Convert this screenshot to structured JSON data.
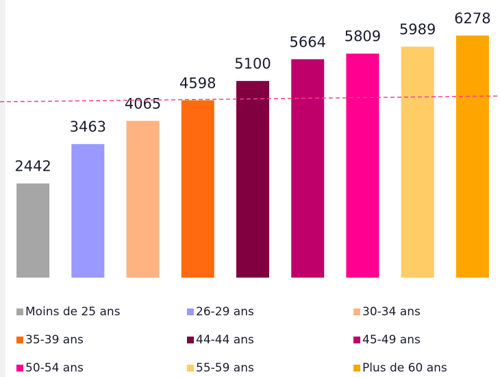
{
  "chart_data": {
    "type": "bar",
    "categories": [
      "Moins de 25 ans",
      "26-29 ans",
      "30-34 ans",
      "35-39 ans",
      "44-44 ans",
      "45-49 ans",
      "50-54 ans",
      "55-59 ans",
      "Plus de 60 ans"
    ],
    "values": [
      2442,
      3463,
      4065,
      4598,
      5100,
      5664,
      5809,
      5989,
      6278
    ],
    "colors": [
      "#a6a6a6",
      "#9999ff",
      "#ffb380",
      "#ff6a10",
      "#800040",
      "#c0006a",
      "#ff0090",
      "#ffcc66",
      "#ffa500"
    ],
    "ylim": [
      0,
      7200
    ],
    "reference_line": {
      "values": [
        4560,
        4710
      ],
      "color": "#ff3d8b"
    },
    "legend": "bottom"
  }
}
